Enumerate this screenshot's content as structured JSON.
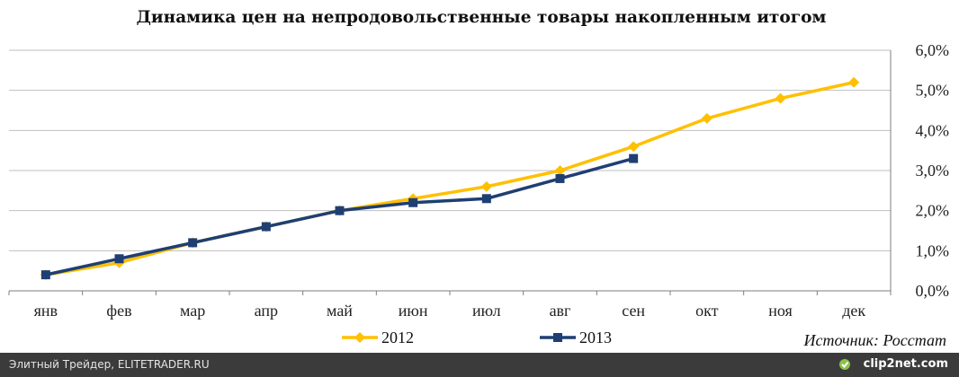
{
  "title": "Динамика цен на непродовольственные товары накопленным итогом",
  "source": "Источник: Росстат",
  "footer": {
    "left_text": "Элитный Трейдер, ELITETRADER.RU",
    "right_text": "clip2net.com",
    "right_icon": "clip2net-logo-icon"
  },
  "chart_data": {
    "type": "line",
    "title": "Динамика цен на непродовольственные товары накопленным итогом",
    "categories": [
      "янв",
      "фев",
      "мар",
      "апр",
      "май",
      "июн",
      "июл",
      "авг",
      "сен",
      "окт",
      "ноя",
      "дек"
    ],
    "y_ticks": [
      "0,0%",
      "1,0%",
      "2,0%",
      "3,0%",
      "4,0%",
      "5,0%",
      "6,0%"
    ],
    "ylim": [
      0,
      6
    ],
    "y_axis_side": "right",
    "grid": true,
    "legend_position": "bottom",
    "series": [
      {
        "name": "2012",
        "color": "#FFC000",
        "marker": "diamond",
        "values": [
          0.4,
          0.7,
          1.2,
          1.6,
          2.0,
          2.3,
          2.6,
          3.0,
          3.6,
          4.3,
          4.8,
          5.2
        ]
      },
      {
        "name": "2013",
        "color": "#1F3F73",
        "marker": "square",
        "values": [
          0.4,
          0.8,
          1.2,
          1.6,
          2.0,
          2.2,
          2.3,
          2.8,
          3.3,
          null,
          null,
          null
        ]
      }
    ]
  }
}
